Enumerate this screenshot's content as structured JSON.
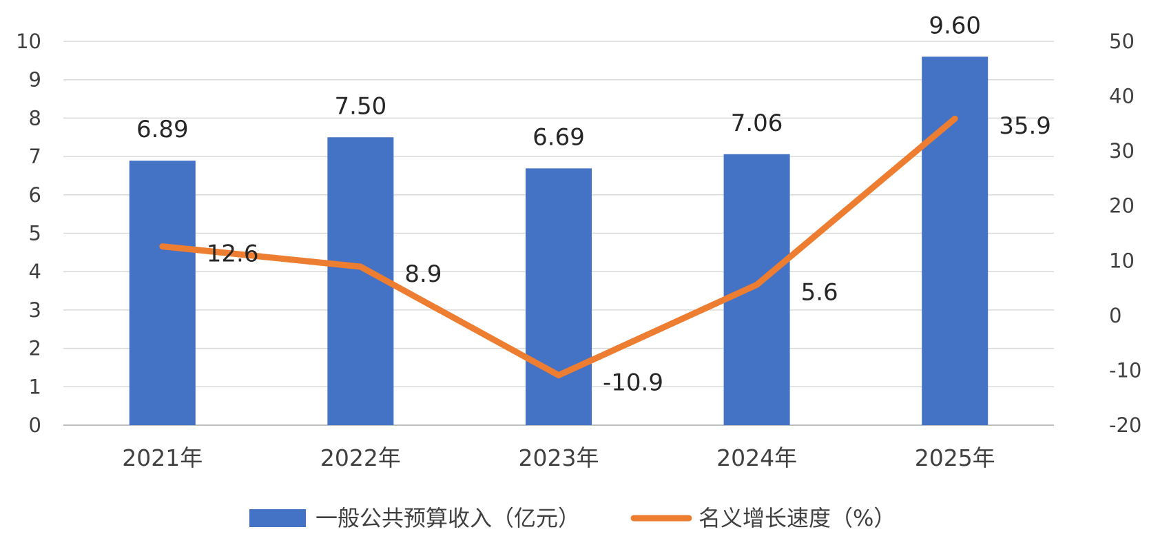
{
  "chart_data": {
    "type": "bar+line",
    "categories": [
      "2021年",
      "2022年",
      "2023年",
      "2024年",
      "2025年"
    ],
    "series": [
      {
        "name": "一般公共预算收入（亿元）",
        "type": "bar",
        "axis": "left",
        "values": [
          6.89,
          7.5,
          6.69,
          7.06,
          9.6
        ],
        "labels": [
          "6.89",
          "7.50",
          "6.69",
          "7.06",
          "9.60"
        ],
        "color": "#4472C4"
      },
      {
        "name": "名义增长速度（%）",
        "type": "line",
        "axis": "right",
        "values": [
          12.6,
          8.9,
          -10.9,
          5.6,
          35.9
        ],
        "labels": [
          "12.6",
          "8.9",
          "-10.9",
          "5.6",
          "35.9"
        ],
        "color": "#ED7D31"
      }
    ],
    "y_left": {
      "min": 0,
      "max": 10,
      "step": 1,
      "ticks": [
        "0",
        "1",
        "2",
        "3",
        "4",
        "5",
        "6",
        "7",
        "8",
        "9",
        "10"
      ]
    },
    "y_right": {
      "min": -20,
      "max": 50,
      "step": 10,
      "ticks": [
        "-20",
        "-10",
        "0",
        "10",
        "20",
        "30",
        "40",
        "50"
      ]
    },
    "grid": true,
    "legend": "bottom"
  }
}
